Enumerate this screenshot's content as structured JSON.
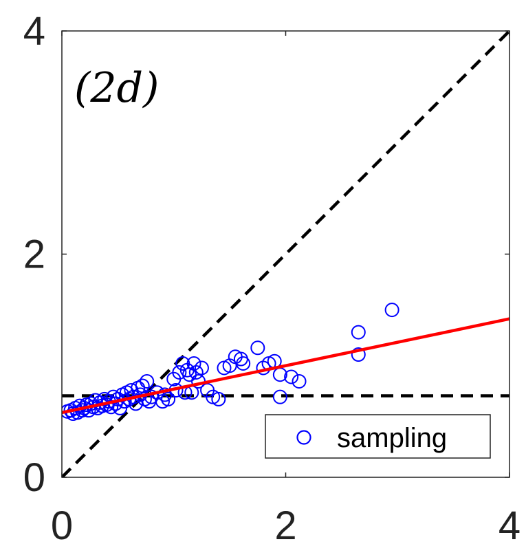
{
  "chart_data": {
    "type": "scatter",
    "panel_label": "(2d)",
    "title": "",
    "xlabel": "",
    "ylabel": "",
    "xlim": [
      0,
      4
    ],
    "ylim": [
      0,
      4
    ],
    "x_ticks": [
      0,
      2,
      4
    ],
    "y_ticks": [
      0,
      2,
      4
    ],
    "x_tick_labels": [
      "0",
      "2",
      "4"
    ],
    "y_tick_labels": [
      "0",
      "2",
      "4"
    ],
    "grid": false,
    "legend": {
      "position": "bottom-right",
      "entries": [
        "sampling"
      ]
    },
    "colors": {
      "points": "#0000ff",
      "fit_line": "#ff0000",
      "reference_lines": "#000000",
      "axes": "#222222"
    },
    "series": [
      {
        "name": "sampling",
        "marker": "open-circle",
        "points": [
          [
            0.05,
            0.59
          ],
          [
            0.08,
            0.6
          ],
          [
            0.1,
            0.57
          ],
          [
            0.12,
            0.62
          ],
          [
            0.14,
            0.58
          ],
          [
            0.16,
            0.64
          ],
          [
            0.18,
            0.6
          ],
          [
            0.2,
            0.62
          ],
          [
            0.22,
            0.65
          ],
          [
            0.24,
            0.6
          ],
          [
            0.26,
            0.66
          ],
          [
            0.28,
            0.63
          ],
          [
            0.3,
            0.69
          ],
          [
            0.32,
            0.62
          ],
          [
            0.34,
            0.67
          ],
          [
            0.36,
            0.64
          ],
          [
            0.38,
            0.7
          ],
          [
            0.4,
            0.65
          ],
          [
            0.42,
            0.68
          ],
          [
            0.44,
            0.63
          ],
          [
            0.46,
            0.72
          ],
          [
            0.48,
            0.66
          ],
          [
            0.5,
            0.7
          ],
          [
            0.52,
            0.62
          ],
          [
            0.54,
            0.74
          ],
          [
            0.56,
            0.68
          ],
          [
            0.58,
            0.76
          ],
          [
            0.6,
            0.7
          ],
          [
            0.62,
            0.78
          ],
          [
            0.64,
            0.72
          ],
          [
            0.66,
            0.66
          ],
          [
            0.68,
            0.8
          ],
          [
            0.7,
            0.74
          ],
          [
            0.72,
            0.82
          ],
          [
            0.74,
            0.7
          ],
          [
            0.76,
            0.86
          ],
          [
            0.78,
            0.68
          ],
          [
            0.8,
            0.72
          ],
          [
            0.85,
            0.76
          ],
          [
            0.9,
            0.68
          ],
          [
            0.92,
            0.74
          ],
          [
            0.95,
            0.7
          ],
          [
            1.0,
            0.88
          ],
          [
            1.02,
            0.78
          ],
          [
            1.05,
            0.94
          ],
          [
            1.08,
            1.02
          ],
          [
            1.1,
            0.76
          ],
          [
            1.12,
            0.96
          ],
          [
            1.14,
            0.92
          ],
          [
            1.16,
            0.76
          ],
          [
            1.18,
            1.02
          ],
          [
            1.2,
            0.94
          ],
          [
            1.22,
            0.86
          ],
          [
            1.25,
            0.98
          ],
          [
            1.3,
            0.78
          ],
          [
            1.35,
            0.72
          ],
          [
            1.4,
            0.7
          ],
          [
            1.45,
            0.98
          ],
          [
            1.5,
            1.0
          ],
          [
            1.55,
            1.08
          ],
          [
            1.6,
            1.06
          ],
          [
            1.62,
            1.02
          ],
          [
            1.75,
            1.16
          ],
          [
            1.8,
            0.98
          ],
          [
            1.85,
            1.02
          ],
          [
            1.9,
            1.04
          ],
          [
            1.95,
            0.92
          ],
          [
            2.05,
            0.9
          ],
          [
            2.12,
            0.86
          ],
          [
            1.95,
            0.72
          ],
          [
            2.65,
            1.1
          ],
          [
            2.65,
            1.3
          ],
          [
            2.95,
            1.5
          ]
        ]
      }
    ],
    "reference_lines": [
      {
        "kind": "diagonal",
        "style": "dashed",
        "from": [
          0,
          0
        ],
        "to": [
          4,
          4
        ]
      },
      {
        "kind": "horizontal",
        "style": "dashed",
        "y": 0.73
      }
    ],
    "fit_line": {
      "style": "solid",
      "from": [
        0,
        0.58
      ],
      "to": [
        4,
        1.42
      ]
    }
  }
}
